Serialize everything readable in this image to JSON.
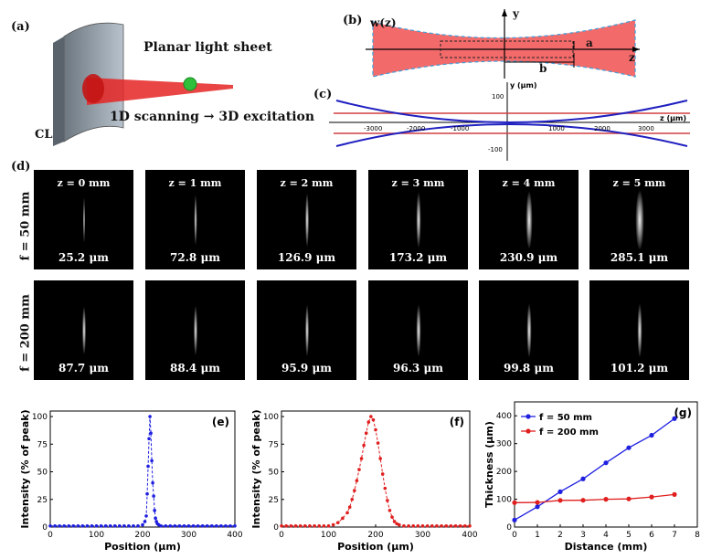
{
  "panel_a": {
    "label": "(a)",
    "title": "Planar light sheet",
    "caption": "1D scanning → 3D excitation",
    "lens_label": "CL"
  },
  "panel_b": {
    "label": "(b)",
    "w_label": "w(z)",
    "y_label": "y",
    "z_label": "z",
    "a_label": "a",
    "b_label": "b"
  },
  "panel_c": {
    "label": "(c)",
    "y_label": "y (μm)",
    "z_label": "z (μm)",
    "x_ticks": [
      "-3000",
      "-2000",
      "-1000",
      "1000",
      "2000",
      "3000"
    ],
    "y_ticks": [
      "100",
      "-100"
    ]
  },
  "panel_d": {
    "label": "(d)",
    "row_labels": [
      "f = 50 mm",
      "f = 200 mm"
    ],
    "positions": [
      "z = 0 mm",
      "z = 1 mm",
      "z = 2 mm",
      "z = 3 mm",
      "z = 4 mm",
      "z = 5 mm"
    ],
    "row1_thickness": [
      "25.2 μm",
      "72.8 μm",
      "126.9 μm",
      "173.2 μm",
      "230.9 μm",
      "285.1 μm"
    ],
    "row2_thickness": [
      "87.7 μm",
      "88.4 μm",
      "95.9 μm",
      "96.3 μm",
      "99.8 μm",
      "101.2 μm"
    ]
  },
  "panel_e": {
    "label": "(e)"
  },
  "panel_f": {
    "label": "(f)"
  },
  "panel_g": {
    "label": "(g)"
  },
  "chart_data": [
    {
      "type": "scatter",
      "panel": "(e)",
      "xlabel": "Position (μm)",
      "ylabel": "Intensity (% of peak)",
      "xlim": [
        0,
        400
      ],
      "ylim": [
        0,
        105
      ],
      "xticks": [
        0,
        100,
        200,
        300,
        400
      ],
      "yticks": [
        0,
        25,
        50,
        75,
        100
      ],
      "color": "#1f1fe0",
      "series": [
        {
          "x": [
            0,
            10,
            20,
            30,
            40,
            50,
            60,
            70,
            80,
            90,
            100,
            110,
            120,
            130,
            140,
            150,
            160,
            170,
            180,
            190,
            200,
            205,
            208,
            210,
            212,
            214,
            216,
            218,
            220,
            222,
            224,
            226,
            228,
            230,
            232,
            235,
            240,
            250,
            260,
            270,
            280,
            290,
            300,
            310,
            320,
            330,
            340,
            350,
            360,
            370,
            380,
            390,
            400
          ],
          "y": [
            1,
            1,
            1,
            1,
            1,
            1,
            1,
            1,
            1,
            1,
            1,
            1,
            1,
            1,
            1,
            1,
            1,
            1,
            1,
            1,
            2,
            5,
            10,
            30,
            55,
            80,
            100,
            85,
            60,
            40,
            28,
            15,
            8,
            5,
            3,
            2,
            1,
            1,
            1,
            1,
            1,
            1,
            1,
            1,
            1,
            1,
            1,
            1,
            1,
            1,
            1,
            1,
            1
          ]
        }
      ]
    },
    {
      "type": "scatter",
      "panel": "(f)",
      "xlabel": "Position (μm)",
      "ylabel": "Intensity (% of peak)",
      "xlim": [
        0,
        400
      ],
      "ylim": [
        0,
        105
      ],
      "xticks": [
        0,
        100,
        200,
        300,
        400
      ],
      "yticks": [
        0,
        25,
        50,
        75,
        100
      ],
      "color": "#e01f1f",
      "series": [
        {
          "x": [
            0,
            10,
            20,
            30,
            40,
            50,
            60,
            70,
            80,
            90,
            100,
            110,
            120,
            130,
            140,
            145,
            150,
            155,
            160,
            165,
            170,
            175,
            180,
            185,
            190,
            195,
            200,
            205,
            210,
            215,
            220,
            225,
            230,
            235,
            240,
            245,
            250,
            260,
            270,
            280,
            290,
            300,
            310,
            320,
            330,
            340,
            350,
            360,
            370,
            380,
            390,
            400
          ],
          "y": [
            1,
            1,
            1,
            1,
            1,
            1,
            1,
            1,
            1,
            1,
            1,
            2,
            4,
            8,
            13,
            18,
            25,
            33,
            42,
            52,
            62,
            74,
            85,
            95,
            100,
            97,
            88,
            76,
            62,
            48,
            35,
            24,
            15,
            9,
            5,
            3,
            2,
            1,
            1,
            1,
            1,
            1,
            1,
            1,
            1,
            1,
            1,
            1,
            1,
            1,
            1,
            1
          ]
        }
      ]
    },
    {
      "type": "line",
      "panel": "(g)",
      "xlabel": "Distance (mm)",
      "ylabel": "Thickness (μm)",
      "xlim": [
        0,
        8
      ],
      "ylim": [
        0,
        450
      ],
      "xticks": [
        0,
        1,
        2,
        3,
        4,
        5,
        6,
        7,
        8
      ],
      "yticks": [
        0,
        100,
        200,
        300,
        400
      ],
      "legend_position": "top-left",
      "series": [
        {
          "name": "f = 50 mm",
          "color": "#1f1fe0",
          "x": [
            0,
            1,
            2,
            3,
            4,
            5,
            6,
            7
          ],
          "y": [
            25.2,
            72.8,
            126.9,
            173.2,
            230.9,
            285.1,
            330,
            390
          ]
        },
        {
          "name": "f = 200 mm",
          "color": "#e01f1f",
          "x": [
            0,
            1,
            2,
            3,
            4,
            5,
            6,
            7
          ],
          "y": [
            87.7,
            88.4,
            95.9,
            96.3,
            99.8,
            101.2,
            108,
            117
          ]
        }
      ]
    }
  ]
}
